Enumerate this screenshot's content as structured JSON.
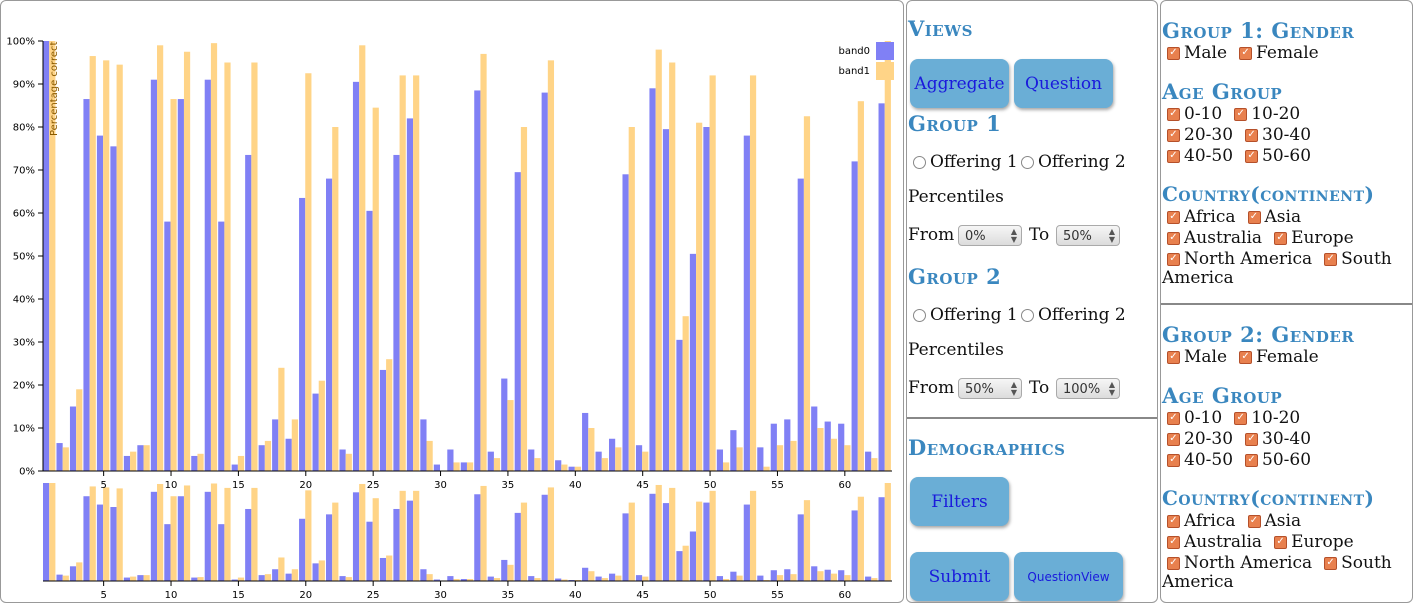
{
  "chart_data": {
    "type": "bar",
    "title": "",
    "xlabel": "",
    "ylabel": "Percentage correct",
    "ylim": [
      0,
      100
    ],
    "y_ticks": [
      "0%",
      "10%",
      "20%",
      "30%",
      "40%",
      "50%",
      "60%",
      "70%",
      "80%",
      "90%",
      "100%"
    ],
    "x_ticks": [
      5,
      10,
      15,
      20,
      25,
      30,
      35,
      40,
      45,
      50,
      55,
      60
    ],
    "x": [
      1,
      2,
      3,
      4,
      5,
      6,
      7,
      8,
      9,
      10,
      11,
      12,
      13,
      14,
      15,
      16,
      17,
      18,
      19,
      20,
      21,
      22,
      23,
      24,
      25,
      26,
      27,
      28,
      29,
      30,
      31,
      32,
      33,
      34,
      35,
      36,
      37,
      38,
      39,
      40,
      41,
      42,
      43,
      44,
      45,
      46,
      47,
      48,
      49,
      50,
      51,
      52,
      53,
      54,
      55,
      56,
      57,
      58,
      59,
      60,
      61,
      62,
      63
    ],
    "series": [
      {
        "name": "band0",
        "color": "#8080f5",
        "values": [
          100,
          6.5,
          15,
          86.5,
          78,
          75.5,
          3.5,
          6,
          91,
          58,
          86.5,
          3.5,
          91,
          58,
          1.5,
          73.5,
          6,
          12,
          7.5,
          63.5,
          18,
          68,
          5,
          90.5,
          60.5,
          23.5,
          73.5,
          82,
          12,
          1.5,
          5,
          2,
          88.5,
          4.5,
          21.5,
          69.5,
          5,
          88,
          2.5,
          1,
          13.5,
          4.5,
          7.5,
          69,
          6,
          89,
          79.5,
          30.5,
          50.5,
          80,
          5,
          9.5,
          78,
          5.5,
          11,
          12,
          68,
          15,
          11.5,
          11,
          72,
          4.5,
          85.5
        ]
      },
      {
        "name": "band1",
        "color": "#ffd487",
        "values": [
          100,
          5.5,
          19,
          96.5,
          95.5,
          94.5,
          4.5,
          6,
          99,
          86.5,
          97.5,
          4,
          99.5,
          95,
          3.5,
          95,
          7,
          24,
          12,
          92.5,
          21,
          80,
          4,
          99,
          84.5,
          26,
          92,
          92,
          7,
          0,
          2,
          2,
          97,
          3,
          16.5,
          80,
          3,
          95.5,
          1.5,
          1,
          10,
          3,
          5.5,
          80,
          4.5,
          98,
          95,
          36,
          81,
          92,
          2,
          5.5,
          92,
          1,
          6,
          7,
          82.5,
          10,
          7.5,
          6,
          86,
          3,
          100
        ]
      }
    ],
    "legend_position": "top-right",
    "grid": false
  },
  "controls": {
    "views_heading": "Views",
    "aggregate_label": "Aggregate",
    "question_label": "Question",
    "group1_heading": "Group 1",
    "group2_heading": "Group 2",
    "offering1_label": "Offering 1",
    "offering2_label": "Offering 2",
    "percentiles_label": "Percentiles",
    "from_label": "From",
    "to_label": "To",
    "group1_from": "0%",
    "group1_to": "50%",
    "group2_from": "50%",
    "group2_to": "100%",
    "demographics_heading": "Demographics",
    "filters_label": "Filters",
    "submit_label": "Submit",
    "questionview_label": "QuestionView"
  },
  "filters": {
    "group1_gender_heading": "Group 1: Gender",
    "group2_gender_heading": "Group 2: Gender",
    "age_group_heading": "Age Group",
    "country_heading": "Country(continent)",
    "male": "Male",
    "female": "Female",
    "ages": [
      "0-10",
      "10-20",
      "20-30",
      "30-40",
      "40-50",
      "50-60"
    ],
    "countries": [
      "Africa",
      "Asia",
      "Australia",
      "Europe",
      "North America",
      "South"
    ],
    "america_wrap": "America",
    "check_glyph": "✓"
  }
}
